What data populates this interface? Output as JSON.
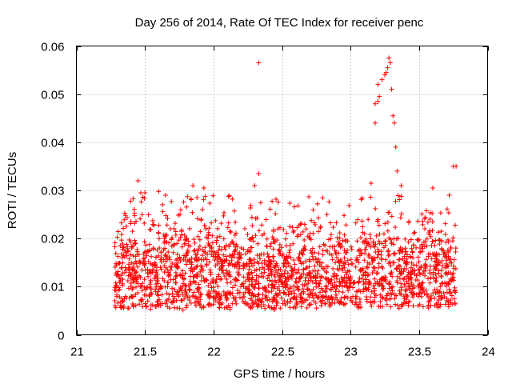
{
  "chart_data": {
    "type": "scatter",
    "title": "Day 256 of 2014, Rate Of TEC Index for receiver penc",
    "xlabel": "GPS time / hours",
    "ylabel": "ROTI / TECUs",
    "xlim": [
      21,
      24
    ],
    "ylim": [
      0,
      0.06
    ],
    "xticks": [
      21,
      21.5,
      22,
      22.5,
      23,
      23.5,
      24
    ],
    "xtick_labels": [
      "21",
      "21.5",
      "22",
      "22.5",
      "23",
      "23.5",
      "24"
    ],
    "yticks": [
      0,
      0.01,
      0.02,
      0.03,
      0.04,
      0.05,
      0.06
    ],
    "ytick_labels": [
      "0",
      "0.01",
      "0.02",
      "0.03",
      "0.04",
      "0.05",
      "0.06"
    ],
    "grid": true,
    "marker": "+",
    "color": "#ff0000",
    "series": [
      {
        "name": "ROTI",
        "x_range": [
          21.28,
          23.77
        ],
        "baseline_min": 0.005,
        "baseline_max": 0.024,
        "count": 2200,
        "notable_points": [
          [
            21.45,
            0.032
          ],
          [
            21.47,
            0.0295
          ],
          [
            21.5,
            0.0295
          ],
          [
            21.6,
            0.0298
          ],
          [
            21.65,
            0.029
          ],
          [
            21.85,
            0.031
          ],
          [
            21.88,
            0.0285
          ],
          [
            21.93,
            0.0305
          ],
          [
            22.33,
            0.0565
          ],
          [
            22.33,
            0.0335
          ],
          [
            22.3,
            0.031
          ],
          [
            23.18,
            0.044
          ],
          [
            23.18,
            0.048
          ],
          [
            23.2,
            0.0485
          ],
          [
            23.21,
            0.0495
          ],
          [
            23.2,
            0.052
          ],
          [
            23.23,
            0.053
          ],
          [
            23.25,
            0.054
          ],
          [
            23.26,
            0.0545
          ],
          [
            23.27,
            0.0555
          ],
          [
            23.28,
            0.0575
          ],
          [
            23.29,
            0.0565
          ],
          [
            23.3,
            0.051
          ],
          [
            23.31,
            0.0455
          ],
          [
            23.32,
            0.044
          ],
          [
            23.33,
            0.039
          ],
          [
            23.34,
            0.034
          ],
          [
            23.15,
            0.0315
          ],
          [
            23.37,
            0.031
          ],
          [
            23.6,
            0.0305
          ],
          [
            23.75,
            0.035
          ],
          [
            23.77,
            0.035
          ],
          [
            23.72,
            0.029
          ]
        ]
      }
    ]
  }
}
